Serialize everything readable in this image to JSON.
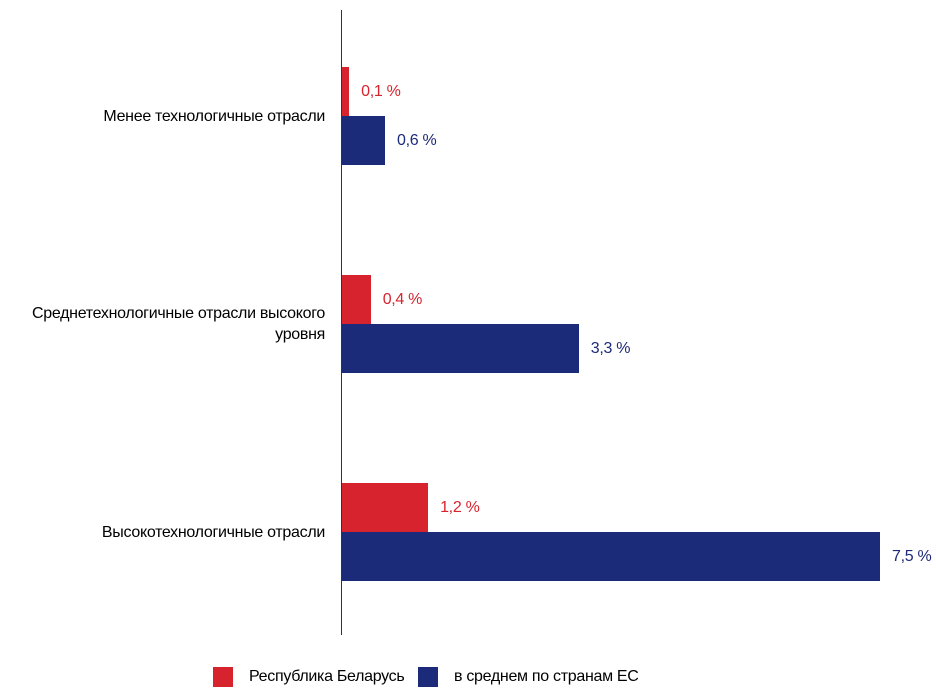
{
  "chart_data": {
    "type": "hbar",
    "categories": [
      "Менее технологичные отрасли",
      "Среднетехнологичные отрасли высокого уровня",
      "Высокотехнологичные отрасли"
    ],
    "series": [
      {
        "name": "Республика Беларусь",
        "color": "#d7232d",
        "values": [
          0.1,
          0.4,
          1.2
        ],
        "value_labels": [
          "0,1 %",
          "0,4 %",
          "1,2 %"
        ]
      },
      {
        "name": "в среднем по странам ЕС",
        "color": "#1c2a7a",
        "values": [
          0.6,
          3.3,
          7.5
        ],
        "value_labels": [
          "0,6 %",
          "3,3 %",
          "7,5 %"
        ]
      }
    ],
    "legend": "bottom"
  }
}
